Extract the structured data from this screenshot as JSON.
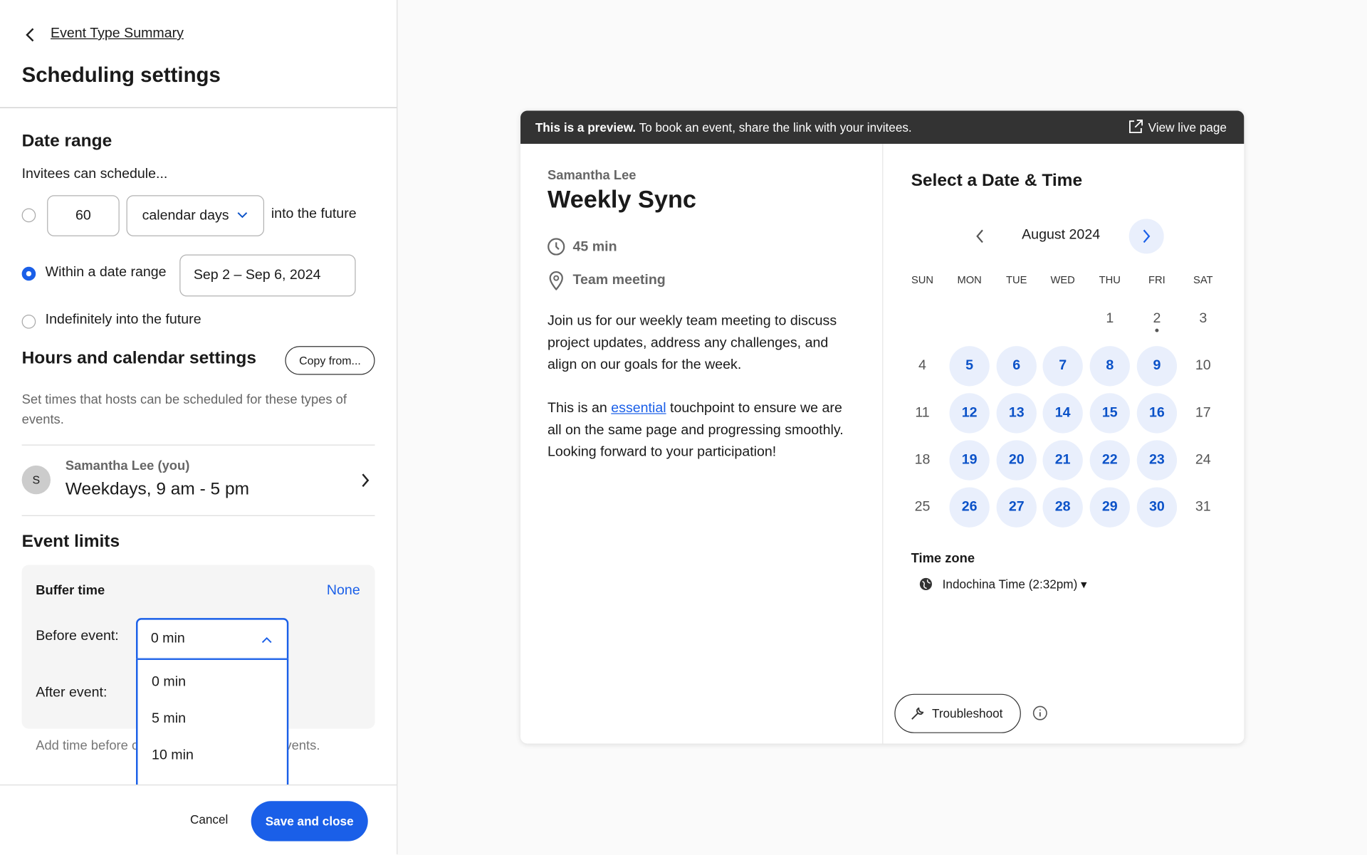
{
  "settings": {
    "back_link": "Event Type Summary",
    "title": "Scheduling settings",
    "date_range": {
      "heading": "Date range",
      "intro": "Invitees can schedule...",
      "days_count": "60",
      "unit": "calendar days",
      "suffix": "into the future",
      "range_label": "Within a date range",
      "range_value": "Sep 2 – Sep 6, 2024",
      "indefinite": "Indefinitely into the future"
    },
    "hours": {
      "heading": "Hours and calendar settings",
      "copy_button": "Copy from...",
      "description": "Set times that hosts can be scheduled for these types of events.",
      "avatar": "S",
      "host": "Samantha Lee (you)",
      "schedule": "Weekdays, 9 am - 5 pm"
    },
    "limits": {
      "heading": "Event limits",
      "buffer_title": "Buffer time",
      "buffer_value": "None",
      "before_label": "Before event:",
      "before_value": "0 min",
      "after_label": "After event:",
      "options": [
        "0 min",
        "5 min",
        "10 min"
      ],
      "note": "Add time before or after booked Calendly events."
    },
    "footer": {
      "cancel": "Cancel",
      "save": "Save and close"
    }
  },
  "preview": {
    "banner_bold": "This is a preview.",
    "banner_text": "To book an event, share the link with your invitees.",
    "live_link": "View live page",
    "host": "Samantha Lee",
    "event": "Weekly Sync",
    "duration": "45 min",
    "location": "Team meeting",
    "paragraph1": "Join us for our weekly team meeting to discuss project updates, address any challenges, and align on our goals for the week.",
    "paragraph2": {
      "before": "This is an ",
      "link": "essential",
      "after": " touchpoint to ensure we are all on the same page and progressing smoothly. Looking forward to your participation!"
    },
    "calendar": {
      "heading": "Select a Date & Time",
      "month": "August 2024",
      "weekdays": [
        "SUN",
        "MON",
        "TUE",
        "WED",
        "THU",
        "FRI",
        "SAT"
      ],
      "weeks": [
        [
          null,
          null,
          null,
          null,
          {
            "label": "1",
            "available": false
          },
          {
            "label": "2",
            "available": false,
            "today": true
          },
          {
            "label": "3",
            "available": false
          }
        ],
        [
          {
            "label": "4",
            "available": false
          },
          {
            "label": "5",
            "available": true
          },
          {
            "label": "6",
            "available": true
          },
          {
            "label": "7",
            "available": true
          },
          {
            "label": "8",
            "available": true
          },
          {
            "label": "9",
            "available": true
          },
          {
            "label": "10",
            "available": false
          }
        ],
        [
          {
            "label": "11",
            "available": false
          },
          {
            "label": "12",
            "available": true
          },
          {
            "label": "13",
            "available": true
          },
          {
            "label": "14",
            "available": true
          },
          {
            "label": "15",
            "available": true
          },
          {
            "label": "16",
            "available": true
          },
          {
            "label": "17",
            "available": false
          }
        ],
        [
          {
            "label": "18",
            "available": false
          },
          {
            "label": "19",
            "available": true
          },
          {
            "label": "20",
            "available": true
          },
          {
            "label": "21",
            "available": true
          },
          {
            "label": "22",
            "available": true
          },
          {
            "label": "23",
            "available": true
          },
          {
            "label": "24",
            "available": false
          }
        ],
        [
          {
            "label": "25",
            "available": false
          },
          {
            "label": "26",
            "available": true
          },
          {
            "label": "27",
            "available": true
          },
          {
            "label": "28",
            "available": true
          },
          {
            "label": "29",
            "available": true
          },
          {
            "label": "30",
            "available": true
          },
          {
            "label": "31",
            "available": false
          }
        ]
      ]
    },
    "timezone_label": "Time zone",
    "timezone": "Indochina Time (2:32pm)",
    "troubleshoot": "Troubleshoot"
  }
}
